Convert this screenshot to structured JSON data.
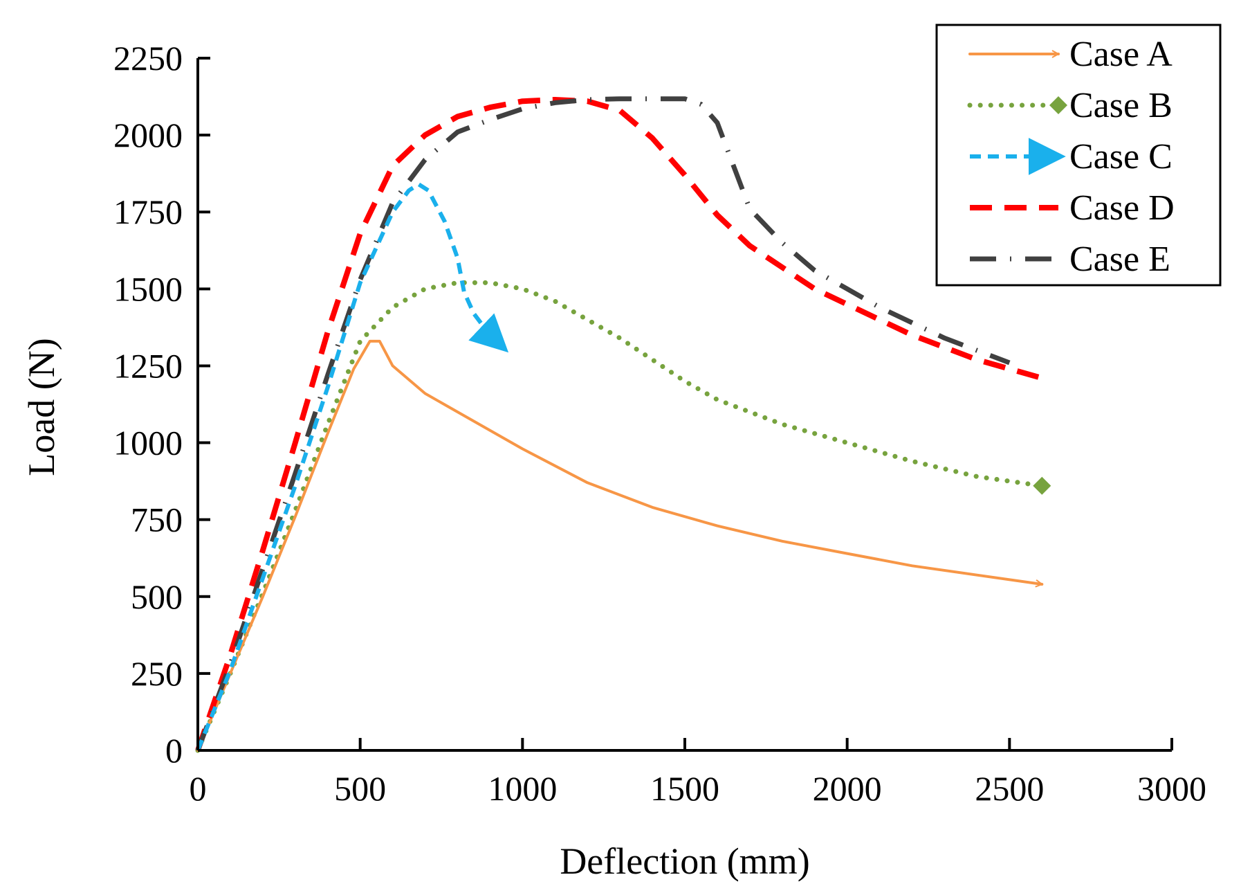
{
  "chart_data": {
    "type": "line",
    "title": "",
    "xlabel": "Deflection (mm)",
    "ylabel": "Load (N)",
    "xlim": [
      0,
      3000
    ],
    "ylim": [
      0,
      2250
    ],
    "x_ticks": [
      "0",
      "500",
      "1000",
      "1500",
      "2000",
      "2500",
      "3000"
    ],
    "y_ticks": [
      "0",
      "250",
      "500",
      "750",
      "1000",
      "1250",
      "1500",
      "1750",
      "2000",
      "2250"
    ],
    "grid": false,
    "legend_position": "top-right",
    "series": [
      {
        "name": "Case A",
        "color": "#f79646",
        "line_style": "solid",
        "end_marker": "arrow",
        "x": [
          0,
          100,
          200,
          300,
          400,
          480,
          530,
          560,
          600,
          700,
          800,
          1000,
          1200,
          1400,
          1600,
          1800,
          2000,
          2200,
          2400,
          2600
        ],
        "y": [
          0,
          250,
          500,
          760,
          1030,
          1240,
          1330,
          1330,
          1250,
          1160,
          1100,
          980,
          870,
          790,
          730,
          680,
          640,
          600,
          570,
          540
        ]
      },
      {
        "name": "Case B",
        "color": "#77a33e",
        "line_style": "dotted",
        "end_marker": "diamond",
        "x": [
          0,
          100,
          200,
          300,
          400,
          500,
          600,
          700,
          800,
          900,
          1000,
          1100,
          1200,
          1300,
          1400,
          1500,
          1600,
          1800,
          2000,
          2200,
          2400,
          2600
        ],
        "y": [
          0,
          250,
          510,
          780,
          1060,
          1330,
          1440,
          1500,
          1520,
          1520,
          1500,
          1460,
          1400,
          1340,
          1270,
          1200,
          1140,
          1060,
          1000,
          940,
          890,
          860
        ]
      },
      {
        "name": "Case C",
        "color": "#1ab0ec",
        "line_style": "dashed",
        "end_marker": "arrow",
        "x": [
          0,
          100,
          200,
          300,
          400,
          500,
          600,
          650,
          680,
          710,
          760,
          800,
          820,
          850,
          900,
          940
        ],
        "y": [
          0,
          260,
          560,
          860,
          1180,
          1520,
          1750,
          1820,
          1840,
          1820,
          1720,
          1600,
          1490,
          1420,
          1350,
          1310
        ]
      },
      {
        "name": "Case D",
        "color": "#ff0000",
        "line_style": "dashed",
        "end_marker": "none",
        "x": [
          0,
          100,
          200,
          300,
          400,
          500,
          600,
          700,
          800,
          900,
          1000,
          1100,
          1200,
          1300,
          1400,
          1500,
          1600,
          1700,
          1800,
          1900,
          2000,
          2100,
          2200,
          2300,
          2400,
          2500,
          2600
        ],
        "y": [
          0,
          310,
          650,
          1000,
          1360,
          1680,
          1900,
          2000,
          2060,
          2090,
          2110,
          2115,
          2110,
          2080,
          1990,
          1870,
          1740,
          1640,
          1570,
          1500,
          1450,
          1400,
          1350,
          1310,
          1270,
          1240,
          1210
        ]
      },
      {
        "name": "Case E",
        "color": "#404040",
        "line_style": "dashdot",
        "end_marker": "none",
        "x": [
          0,
          100,
          200,
          300,
          400,
          500,
          600,
          700,
          800,
          900,
          1000,
          1100,
          1200,
          1300,
          1400,
          1500,
          1550,
          1600,
          1650,
          1700,
          1800,
          1900,
          2000,
          2100,
          2200,
          2300,
          2400,
          2500
        ],
        "y": [
          0,
          280,
          590,
          900,
          1220,
          1530,
          1780,
          1920,
          2010,
          2050,
          2085,
          2105,
          2115,
          2118,
          2118,
          2118,
          2100,
          2040,
          1900,
          1760,
          1650,
          1560,
          1500,
          1440,
          1390,
          1340,
          1300,
          1260
        ]
      }
    ]
  }
}
